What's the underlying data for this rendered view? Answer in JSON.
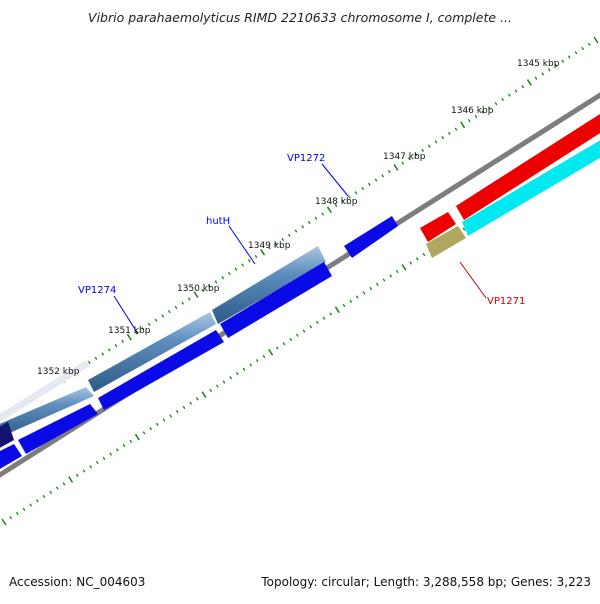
{
  "title": "Vibrio parahaemolyticus RIMD 2210633 chromosome I, complete ...",
  "footer": {
    "accession": "Accession: NC_004603",
    "summary": "Topology: circular; Length: 3,288,558 bp; Genes: 3,223"
  },
  "scale_labels": [
    "1345 kbp",
    "1346 kbp",
    "1347 kbp",
    "1348 kbp",
    "1349 kbp",
    "1350 kbp",
    "1351 kbp",
    "1352 kbp"
  ],
  "gene_labels": [
    {
      "text": "VP1272",
      "color": "#0000ee"
    },
    {
      "text": "hutH",
      "color": "#0000ee"
    },
    {
      "text": "VP1274",
      "color": "#0000ee"
    },
    {
      "text": "VP1271",
      "color": "#cc0000"
    }
  ],
  "colors": {
    "backbone": "#8a8a8a",
    "ticks": "#1f8a1f",
    "steelblue_feature": "#4a7fb0",
    "blue_feature": "#0a0ae6",
    "red_feature": "#ee0000",
    "cyan_feature": "#00e8f0",
    "khaki_feature": "#b0a660",
    "navy_feature": "#101070"
  }
}
